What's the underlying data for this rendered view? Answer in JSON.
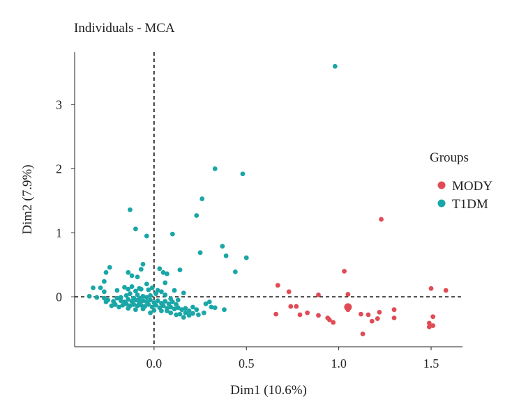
{
  "chart_data": {
    "type": "scatter",
    "title": "Individuals - MCA",
    "xlabel": "Dim1 (10.6%)",
    "ylabel": "Dim2 (7.9%)",
    "xlim": [
      -0.43,
      1.67
    ],
    "ylim": [
      -0.78,
      3.82
    ],
    "xticks": [
      0.0,
      0.5,
      1.0,
      1.5
    ],
    "xtick_labels": [
      "0.0",
      "0.5",
      "1.0",
      "1.5"
    ],
    "yticks": [
      0,
      1,
      2,
      3
    ],
    "ytick_labels": [
      "0",
      "1",
      "2",
      "3"
    ],
    "grid": false,
    "reference_lines": {
      "x": 0,
      "y": 0
    },
    "legend": {
      "title": "Groups",
      "position": "right"
    },
    "series": [
      {
        "name": "MODY",
        "color": "#e04b55",
        "points": [
          [
            1.23,
            1.21
          ],
          [
            1.03,
            0.4
          ],
          [
            0.67,
            0.18
          ],
          [
            0.73,
            0.08
          ],
          [
            0.89,
            0.03
          ],
          [
            1.05,
            0.04
          ],
          [
            1.5,
            0.13
          ],
          [
            1.58,
            0.1
          ],
          [
            1.05,
            -0.15
          ],
          [
            1.05,
            -0.2
          ],
          [
            0.66,
            -0.27
          ],
          [
            0.74,
            -0.15
          ],
          [
            0.77,
            -0.15
          ],
          [
            0.79,
            -0.28
          ],
          [
            0.83,
            -0.25
          ],
          [
            0.89,
            -0.29
          ],
          [
            0.94,
            -0.33
          ],
          [
            0.95,
            -0.36
          ],
          [
            0.97,
            -0.4
          ],
          [
            1.12,
            -0.27
          ],
          [
            1.16,
            -0.28
          ],
          [
            1.18,
            -0.38
          ],
          [
            1.21,
            -0.34
          ],
          [
            1.22,
            -0.24
          ],
          [
            1.3,
            -0.2
          ],
          [
            1.3,
            -0.33
          ],
          [
            1.13,
            -0.58
          ],
          [
            1.49,
            -0.41
          ],
          [
            1.49,
            -0.47
          ],
          [
            1.51,
            -0.45
          ],
          [
            1.51,
            -0.31
          ]
        ]
      },
      {
        "name": "T1DM",
        "color": "#1aa6a6",
        "points": [
          [
            0.98,
            3.6
          ],
          [
            0.33,
            2.0
          ],
          [
            0.48,
            1.92
          ],
          [
            0.26,
            1.53
          ],
          [
            0.23,
            1.27
          ],
          [
            -0.13,
            1.36
          ],
          [
            -0.1,
            1.06
          ],
          [
            -0.04,
            0.95
          ],
          [
            0.1,
            0.98
          ],
          [
            0.37,
            0.79
          ],
          [
            0.25,
            0.69
          ],
          [
            0.39,
            0.64
          ],
          [
            0.5,
            0.61
          ],
          [
            0.44,
            0.39
          ],
          [
            0.14,
            0.42
          ],
          [
            -0.06,
            0.51
          ],
          [
            -0.24,
            0.46
          ],
          [
            -0.26,
            0.38
          ],
          [
            -0.14,
            0.38
          ],
          [
            -0.12,
            0.33
          ],
          [
            -0.09,
            0.31
          ],
          [
            -0.07,
            0.43
          ],
          [
            0.03,
            0.44
          ],
          [
            0.05,
            0.38
          ],
          [
            0.07,
            0.36
          ],
          [
            0.06,
            0.22
          ],
          [
            -0.04,
            0.2
          ],
          [
            -0.27,
            0.24
          ],
          [
            -0.29,
            0.14
          ],
          [
            -0.27,
            0.08
          ],
          [
            -0.2,
            0.1
          ],
          [
            -0.16,
            0.15
          ],
          [
            -0.14,
            0.12
          ],
          [
            -0.12,
            0.16
          ],
          [
            -0.08,
            0.13
          ],
          [
            -0.1,
            0.09
          ],
          [
            -0.07,
            0.12
          ],
          [
            -0.03,
            0.11
          ],
          [
            -0.01,
            0.14
          ],
          [
            0.02,
            0.1
          ],
          [
            0.04,
            0.08
          ],
          [
            0.11,
            0.1
          ],
          [
            0.16,
            0.06
          ],
          [
            -0.33,
            0.14
          ],
          [
            -0.35,
            0.01
          ],
          [
            -0.31,
            -0.01
          ],
          [
            -0.27,
            -0.02
          ],
          [
            -0.25,
            -0.05
          ],
          [
            -0.22,
            -0.07
          ],
          [
            -0.2,
            -0.02
          ],
          [
            -0.18,
            -0.06
          ],
          [
            -0.16,
            -0.08
          ],
          [
            -0.14,
            -0.04
          ],
          [
            -0.12,
            -0.07
          ],
          [
            -0.1,
            -0.05
          ],
          [
            -0.08,
            -0.09
          ],
          [
            -0.06,
            -0.06
          ],
          [
            -0.04,
            -0.08
          ],
          [
            -0.02,
            -0.05
          ],
          [
            0.0,
            -0.09
          ],
          [
            0.02,
            -0.06
          ],
          [
            0.04,
            -0.1
          ],
          [
            0.06,
            -0.07
          ],
          [
            0.08,
            -0.11
          ],
          [
            0.1,
            -0.08
          ],
          [
            0.12,
            -0.12
          ],
          [
            -0.26,
            -0.08
          ],
          [
            -0.21,
            -0.12
          ],
          [
            -0.17,
            -0.13
          ],
          [
            -0.15,
            -0.11
          ],
          [
            -0.13,
            -0.14
          ],
          [
            -0.11,
            -0.12
          ],
          [
            -0.09,
            -0.14
          ],
          [
            -0.07,
            -0.13
          ],
          [
            -0.05,
            -0.15
          ],
          [
            -0.03,
            -0.12
          ],
          [
            -0.01,
            -0.16
          ],
          [
            0.01,
            -0.13
          ],
          [
            0.03,
            -0.17
          ],
          [
            0.05,
            -0.14
          ],
          [
            0.07,
            -0.18
          ],
          [
            0.09,
            -0.16
          ],
          [
            0.11,
            -0.19
          ],
          [
            0.13,
            -0.17
          ],
          [
            0.15,
            -0.2
          ],
          [
            0.17,
            -0.18
          ],
          [
            0.19,
            -0.22
          ],
          [
            0.21,
            -0.16
          ],
          [
            0.23,
            -0.2
          ],
          [
            0.14,
            -0.27
          ],
          [
            0.17,
            -0.25
          ],
          [
            0.12,
            -0.28
          ],
          [
            0.09,
            -0.25
          ],
          [
            0.07,
            -0.22
          ],
          [
            0.19,
            -0.29
          ],
          [
            0.21,
            -0.26
          ],
          [
            0.24,
            -0.28
          ],
          [
            0.27,
            -0.25
          ],
          [
            0.28,
            -0.11
          ],
          [
            0.3,
            -0.08
          ],
          [
            0.31,
            -0.16
          ],
          [
            0.33,
            -0.17
          ],
          [
            0.38,
            -0.2
          ],
          [
            -0.18,
            -0.01
          ],
          [
            -0.15,
            0.02
          ],
          [
            -0.11,
            -0.02
          ],
          [
            -0.09,
            0.03
          ],
          [
            -0.06,
            0.01
          ],
          [
            -0.04,
            -0.01
          ],
          [
            -0.02,
            0.02
          ],
          [
            0.06,
            0.03
          ],
          [
            -0.14,
            -0.18
          ],
          [
            -0.1,
            -0.2
          ],
          [
            -0.06,
            -0.19
          ],
          [
            0.0,
            -0.21
          ],
          [
            0.04,
            -0.22
          ],
          [
            -0.02,
            -0.25
          ],
          [
            -0.19,
            -0.16
          ],
          [
            -0.23,
            -0.14
          ],
          [
            0.16,
            -0.32
          ],
          [
            -0.13,
            0.05
          ],
          [
            -0.08,
            -0.03
          ],
          [
            0.01,
            0.05
          ],
          [
            0.09,
            -0.03
          ],
          [
            0.13,
            -0.05
          ]
        ]
      }
    ]
  }
}
